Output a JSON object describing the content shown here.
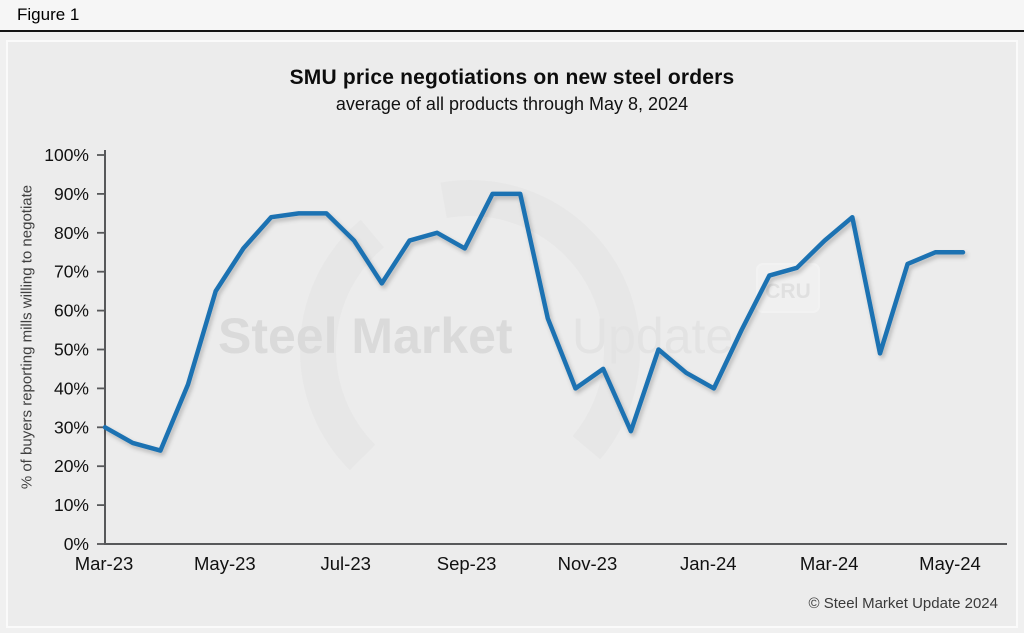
{
  "figure_label": "Figure 1",
  "chart": {
    "title": "SMU price negotiations on new steel orders",
    "subtitle": "average of all products through May 8, 2024",
    "y_axis_label": "% of buyers reporting mills willing to negotiate",
    "copyright": "© Steel Market Update 2024"
  },
  "watermark": {
    "brand_bold": "Steel Market",
    "brand_light": "Update",
    "badge": "CRU"
  },
  "colors": {
    "line": "#1c72b2",
    "panel_bg": "#ececec",
    "axis": "#57585a",
    "tick_text": "#111111",
    "watermark_dark": "#d9d9d9",
    "watermark_light": "#e3e3e3"
  },
  "chart_data": {
    "type": "line",
    "title": "SMU price negotiations on new steel orders",
    "subtitle": "average of all products through May 8, 2024",
    "xlabel": "",
    "ylabel": "% of buyers reporting mills willing to negotiate",
    "ylim": [
      0,
      100
    ],
    "y_tick_step": 10,
    "y_tick_suffix": "%",
    "x_tick_labels": [
      "Mar-23",
      "May-23",
      "Jul-23",
      "Sep-23",
      "Nov-23",
      "Jan-24",
      "Mar-24",
      "May-24"
    ],
    "grid": false,
    "legend_position": "none",
    "series": [
      {
        "name": "% of buyers reporting mills willing to negotiate",
        "values": [
          30,
          26,
          24,
          41,
          65,
          76,
          84,
          85,
          85,
          78,
          67,
          78,
          80,
          76,
          90,
          90,
          58,
          40,
          45,
          29,
          50,
          44,
          40,
          55,
          69,
          71,
          78,
          84,
          49,
          72,
          75,
          75
        ]
      }
    ]
  }
}
